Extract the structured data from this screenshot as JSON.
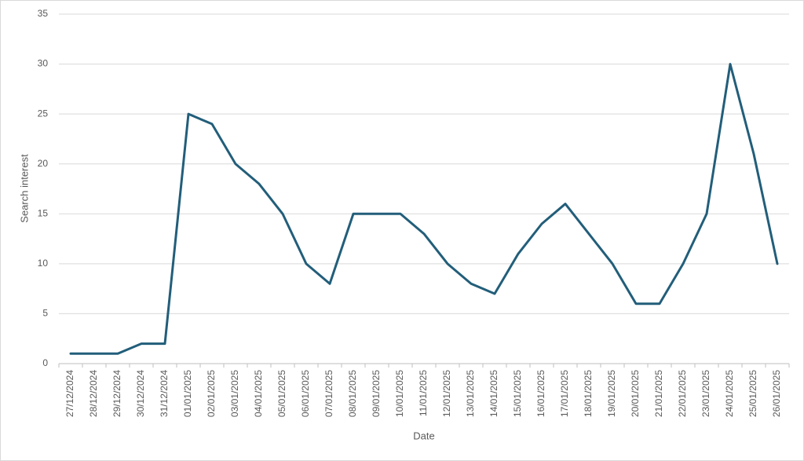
{
  "chart_data": {
    "type": "line",
    "x_label": "Date",
    "y_label": "Search interest",
    "categories": [
      "27/12/2024",
      "28/12/2024",
      "29/12/2024",
      "30/12/2024",
      "31/12/2024",
      "01/01/2025",
      "02/01/2025",
      "03/01/2025",
      "04/01/2025",
      "05/01/2025",
      "06/01/2025",
      "07/01/2025",
      "08/01/2025",
      "09/01/2025",
      "10/01/2025",
      "11/01/2025",
      "12/01/2025",
      "13/01/2025",
      "14/01/2025",
      "15/01/2025",
      "16/01/2025",
      "17/01/2025",
      "18/01/2025",
      "19/01/2025",
      "20/01/2025",
      "21/01/2025",
      "22/01/2025",
      "23/01/2025",
      "24/01/2025",
      "25/01/2025",
      "26/01/2025"
    ],
    "values": [
      1,
      1,
      1,
      2,
      2,
      25,
      24,
      20,
      18,
      15,
      10,
      8,
      15,
      15,
      15,
      13,
      10,
      8,
      7,
      11,
      14,
      16,
      13,
      10,
      6,
      6,
      10,
      15,
      30,
      21,
      10
    ],
    "color": "#225e7a",
    "ylim": [
      0,
      35
    ],
    "yticks": [
      0,
      5,
      10,
      15,
      20,
      25,
      30,
      35
    ],
    "grid": true
  }
}
